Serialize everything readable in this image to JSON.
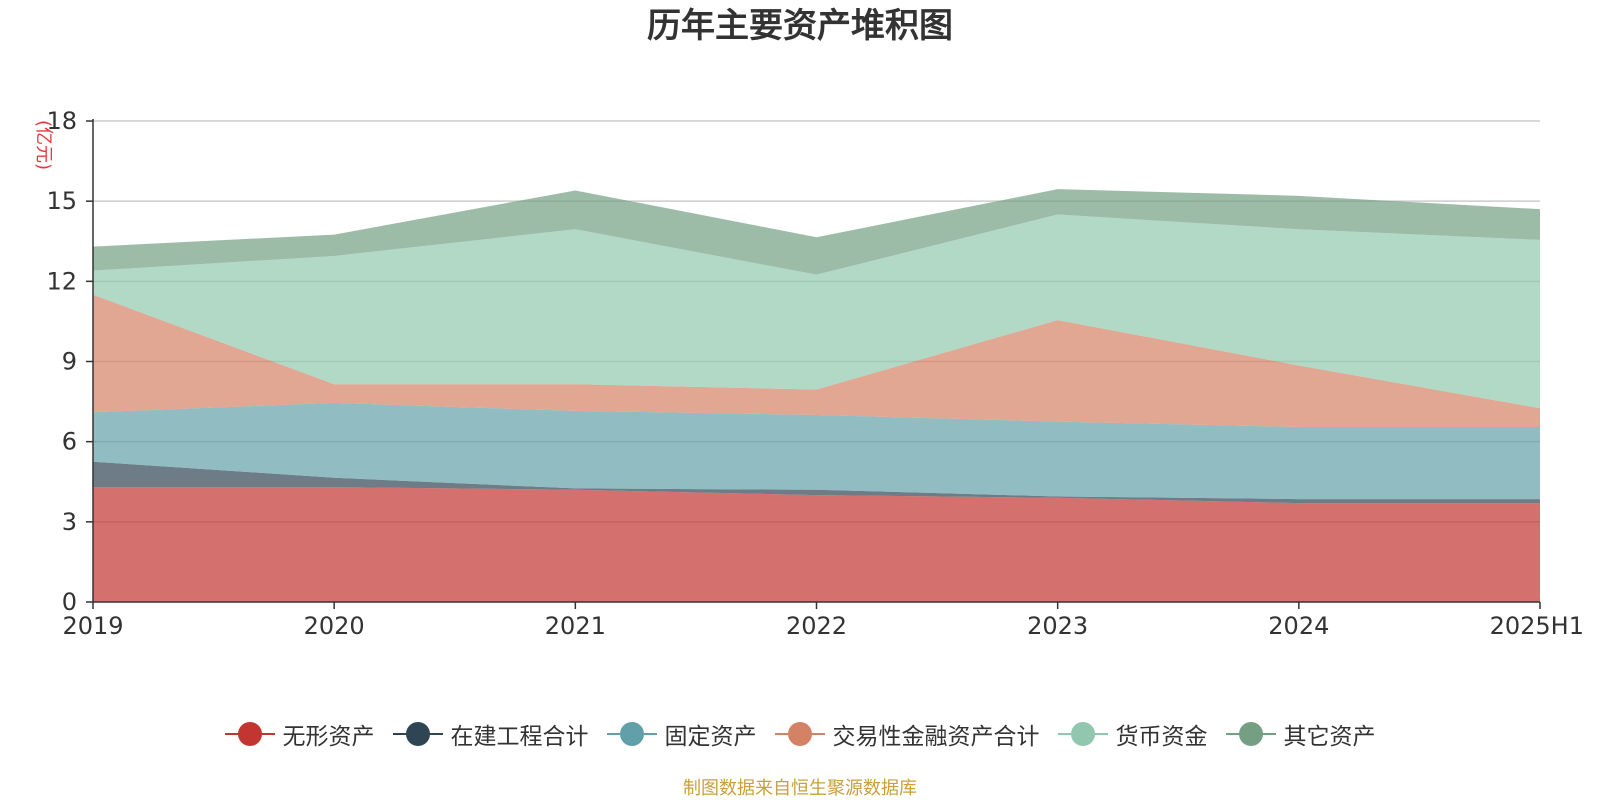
{
  "chart_data": {
    "type": "area",
    "stacked": true,
    "title": "历年主要资产堆积图",
    "unit_label": "(亿元)",
    "x": [
      "2019",
      "2020",
      "2021",
      "2022",
      "2023",
      "2024",
      "2025H1"
    ],
    "ylim": [
      0,
      18
    ],
    "yticks": [
      "0",
      "3",
      "6",
      "9",
      "12",
      "15",
      "18"
    ],
    "grid": true,
    "legend_position": "bottom",
    "series": [
      {
        "name": "无形资产",
        "color": "#c23531",
        "values": [
          4.3,
          4.3,
          4.2,
          4.0,
          3.9,
          3.7,
          3.7
        ]
      },
      {
        "name": "在建工程合计",
        "color": "#2f4554",
        "values": [
          0.95,
          0.35,
          0.05,
          0.2,
          0.05,
          0.15,
          0.15
        ]
      },
      {
        "name": "固定资产",
        "color": "#61a0a8",
        "values": [
          1.85,
          2.8,
          2.9,
          2.8,
          2.8,
          2.7,
          2.7
        ]
      },
      {
        "name": "交易性金融资产合计",
        "color": "#d48265",
        "values": [
          4.4,
          0.7,
          1.0,
          0.95,
          3.8,
          2.3,
          0.7
        ]
      },
      {
        "name": "货币资金",
        "color": "#91c7ae",
        "values": [
          0.9,
          4.8,
          5.8,
          4.3,
          3.95,
          5.1,
          6.3
        ]
      },
      {
        "name": "其它资产",
        "color": "#749f83",
        "values": [
          0.9,
          0.8,
          1.45,
          1.4,
          0.95,
          1.25,
          1.15
        ]
      }
    ]
  },
  "footer": "制图数据来自恒生聚源数据库"
}
